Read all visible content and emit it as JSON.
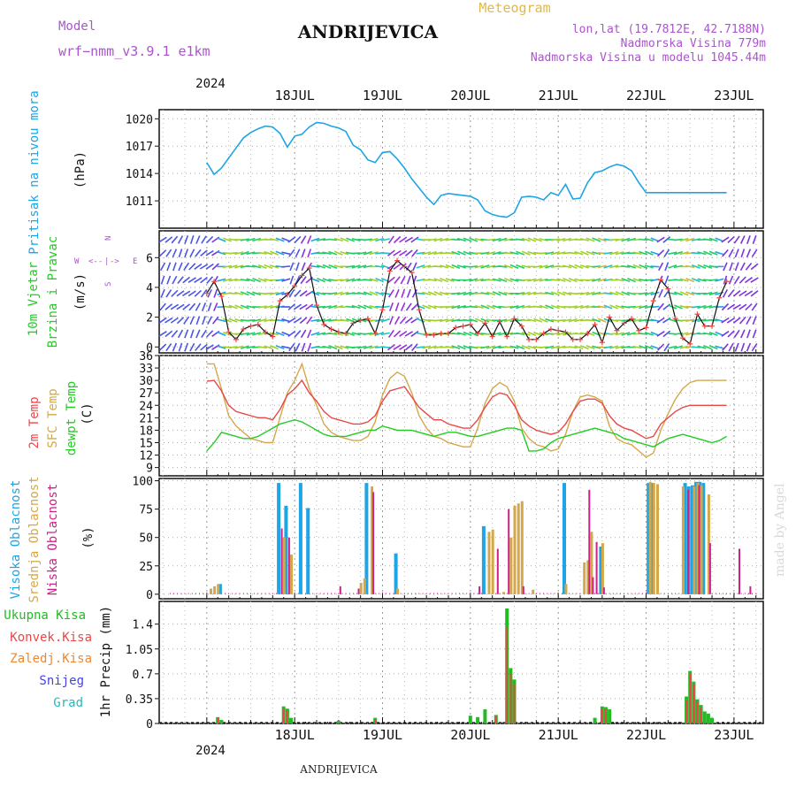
{
  "header": {
    "model_label": "Model",
    "model_name": "wrf−nmm_v3.9.1 e1km",
    "title": "ANDRIJEVICA",
    "meteogram": "Meteogram",
    "lonlat": "lon,lat (19.7812E, 42.7188N)",
    "elevation": "Nadmorska Visina 779m",
    "model_elevation": "Nadmorska Visina u modelu 1045.44m",
    "watermark": "made by Angel",
    "footer_title": "ANDRIJEVICA"
  },
  "colors": {
    "pressure": "#1ea5e6",
    "wind": "#22cc22",
    "temp2m": "#e84848",
    "sfc": "#d4a84a",
    "dewpt": "#22cc22",
    "high_cloud": "#1ea5e6",
    "mid_cloud": "#d4a84a",
    "low_cloud": "#cc2288",
    "total_precip": "#22bb22",
    "conv_precip": "#e84848",
    "frozen_precip": "#ee8833",
    "snow": "#4444dd",
    "hail": "#22bbbb",
    "model": "#aa55cc"
  },
  "time_axis": {
    "year": "2024",
    "days": [
      "18JUL",
      "19JUL",
      "20JUL",
      "21JUL",
      "22JUL",
      "23JUL"
    ]
  },
  "chart_data": [
    {
      "type": "line",
      "id": "pressure",
      "ylabel": "Pritisak na nivou mora",
      "unit": "(hPa)",
      "ylim": [
        1008,
        1021
      ],
      "yticks": [
        1011,
        1014,
        1017,
        1020
      ],
      "grid": true,
      "x_hours": [
        0,
        2,
        4,
        6,
        8,
        10,
        12,
        14,
        16,
        18,
        20,
        22,
        24,
        26,
        28,
        30,
        32,
        34,
        36,
        38,
        40,
        42,
        44,
        46,
        48,
        50,
        52,
        54,
        56,
        58,
        60,
        62,
        64,
        66,
        68,
        70,
        72,
        74,
        76,
        78,
        80,
        82,
        84,
        86,
        88,
        90,
        92,
        94,
        96,
        98,
        100,
        102,
        104,
        106,
        108,
        110,
        112,
        114,
        116,
        118,
        120,
        122,
        124,
        126,
        128,
        130,
        132,
        134,
        136,
        138,
        140,
        142
      ],
      "series": [
        {
          "values": [
            1015.2,
            1013.9,
            1014.6,
            1015.7,
            1016.8,
            1017.9,
            1018.5,
            1018.9,
            1019.2,
            1019.1,
            1018.4,
            1016.9,
            1018.1,
            1018.3,
            1019.1,
            1019.6,
            1019.5,
            1019.2,
            1019.0,
            1018.6,
            1017.1,
            1016.6,
            1015.5,
            1015.2,
            1016.3,
            1016.4,
            1015.6,
            1014.6,
            1013.4,
            1012.4,
            1011.4,
            1010.6,
            1011.6,
            1011.8,
            1011.7,
            1011.6,
            1011.5,
            1011.1,
            1009.9,
            1009.5,
            1009.3,
            1009.2,
            1009.7,
            1011.4,
            1011.5,
            1011.4,
            1011.1,
            1011.9,
            1011.6,
            1012.8,
            1011.2,
            1011.3,
            1013.0,
            1014.1,
            1014.3,
            1014.7,
            1015.0,
            1014.8,
            1014.3,
            1013.0,
            1011.9,
            1011.9,
            1011.9,
            1011.9,
            1011.9,
            1011.9,
            1011.9,
            1011.9,
            1011.9,
            1011.9,
            1011.9,
            1011.9
          ]
        }
      ]
    },
    {
      "type": "line",
      "id": "wind",
      "ylabel": "10m Vjetar",
      "ylabel2": "Brzina i Pravac",
      "unit": "(m/s)",
      "ylim": [
        -0.4,
        7.8
      ],
      "yticks": [
        0,
        2,
        4,
        6
      ],
      "grid": true,
      "x_hours": [
        0,
        2,
        4,
        6,
        8,
        10,
        12,
        14,
        16,
        18,
        20,
        22,
        24,
        26,
        28,
        30,
        32,
        34,
        36,
        38,
        40,
        42,
        44,
        46,
        48,
        50,
        52,
        54,
        56,
        58,
        60,
        62,
        64,
        66,
        68,
        70,
        72,
        74,
        76,
        78,
        80,
        82,
        84,
        86,
        88,
        90,
        92,
        94,
        96,
        98,
        100,
        102,
        104,
        106,
        108,
        110,
        112,
        114,
        116,
        118,
        120,
        122,
        124,
        126,
        128,
        130,
        132,
        134,
        136,
        138,
        140,
        142
      ],
      "series": [
        {
          "name": "speed",
          "values": [
            3.6,
            4.4,
            3.4,
            1.0,
            0.5,
            1.2,
            1.4,
            1.5,
            1.0,
            0.7,
            3.1,
            3.5,
            4.1,
            4.8,
            5.3,
            2.8,
            1.5,
            1.2,
            1.0,
            0.9,
            1.6,
            1.8,
            1.9,
            0.9,
            2.5,
            5.1,
            5.8,
            5.4,
            5.0,
            2.5,
            0.8,
            0.8,
            0.9,
            0.9,
            1.3,
            1.4,
            1.5,
            0.9,
            1.6,
            0.7,
            1.7,
            0.7,
            1.9,
            1.4,
            0.5,
            0.5,
            0.9,
            1.2,
            1.1,
            1.0,
            0.5,
            0.5,
            0.9,
            1.5,
            0.3,
            2.0,
            1.1,
            1.6,
            1.9,
            1.1,
            1.3,
            3.1,
            4.5,
            3.9,
            1.9,
            0.6,
            0.2,
            2.2,
            1.4,
            1.4,
            3.3,
            4.4
          ]
        }
      ]
    },
    {
      "type": "line",
      "id": "temperature",
      "ylabel": "2m Temp",
      "ylabel2": "SFC Temp",
      "ylabel3": "dewpt Temp",
      "unit": "(C)",
      "ylim": [
        7,
        36
      ],
      "yticks": [
        9,
        12,
        15,
        18,
        21,
        24,
        27,
        30,
        33,
        36
      ],
      "grid": true,
      "x_hours": [
        0,
        2,
        4,
        6,
        8,
        10,
        12,
        14,
        16,
        18,
        20,
        22,
        24,
        26,
        28,
        30,
        32,
        34,
        36,
        38,
        40,
        42,
        44,
        46,
        48,
        50,
        52,
        54,
        56,
        58,
        60,
        62,
        64,
        66,
        68,
        70,
        72,
        74,
        76,
        78,
        80,
        82,
        84,
        86,
        88,
        90,
        92,
        94,
        96,
        98,
        100,
        102,
        104,
        106,
        108,
        110,
        112,
        114,
        116,
        118,
        120,
        122,
        124,
        126,
        128,
        130,
        132,
        134,
        136,
        138,
        140,
        142
      ],
      "series": [
        {
          "name": "2m Temp",
          "values": [
            29.8,
            30.0,
            27.5,
            24.0,
            22.5,
            22.0,
            21.5,
            21.0,
            21.0,
            20.5,
            23.0,
            26.5,
            28.0,
            30.0,
            27.0,
            25.0,
            22.5,
            21.0,
            20.5,
            20.0,
            19.5,
            19.5,
            20.0,
            21.5,
            25.0,
            27.5,
            28.0,
            28.5,
            26.0,
            23.5,
            22.0,
            20.5,
            20.5,
            19.5,
            19.0,
            18.5,
            18.5,
            20.5,
            23.5,
            26.0,
            27.0,
            26.5,
            24.0,
            20.5,
            19.0,
            18.0,
            17.5,
            17.0,
            17.5,
            19.5,
            22.5,
            25.0,
            25.5,
            25.5,
            24.5,
            21.5,
            19.5,
            18.5,
            18.0,
            17.0,
            16.0,
            16.5,
            19.5,
            21.0,
            22.5,
            23.5,
            24.0,
            24.0,
            24.0,
            24.0,
            24.0,
            24.0
          ]
        },
        {
          "name": "SFC Temp",
          "values": [
            34.0,
            34.0,
            28.0,
            21.5,
            19.0,
            17.5,
            16.0,
            15.5,
            15.0,
            15.0,
            21.0,
            27.0,
            30.0,
            34.0,
            28.0,
            24.0,
            19.5,
            17.5,
            16.5,
            16.0,
            15.5,
            15.5,
            16.5,
            20.0,
            26.5,
            30.5,
            32.0,
            31.0,
            27.0,
            21.5,
            18.5,
            16.5,
            16.0,
            15.0,
            14.5,
            14.0,
            14.0,
            18.5,
            24.5,
            28.0,
            29.5,
            28.5,
            25.0,
            18.5,
            16.0,
            14.5,
            14.0,
            13.0,
            13.5,
            17.0,
            22.5,
            26.0,
            26.5,
            26.0,
            25.0,
            19.0,
            16.0,
            15.0,
            14.5,
            13.0,
            11.5,
            12.5,
            18.0,
            22.0,
            25.5,
            28.0,
            29.5,
            30.0,
            30.0,
            30.0,
            30.0,
            30.0
          ]
        },
        {
          "name": "dewpt Temp",
          "values": [
            13.0,
            15.0,
            17.5,
            17.0,
            16.5,
            16.0,
            16.0,
            16.5,
            17.5,
            18.5,
            19.5,
            20.0,
            20.5,
            20.0,
            19.0,
            18.0,
            17.0,
            16.5,
            16.5,
            16.5,
            17.0,
            17.5,
            18.0,
            18.0,
            19.0,
            18.5,
            18.0,
            18.0,
            18.0,
            17.5,
            17.0,
            16.5,
            17.0,
            17.5,
            17.5,
            17.0,
            16.5,
            16.5,
            17.0,
            17.5,
            18.0,
            18.5,
            18.5,
            18.0,
            13.0,
            13.0,
            13.5,
            15.0,
            16.0,
            16.5,
            17.0,
            17.5,
            18.0,
            18.5,
            18.0,
            17.5,
            17.0,
            16.0,
            15.5,
            15.0,
            14.5,
            14.0,
            15.0,
            16.0,
            16.5,
            17.0,
            16.5,
            16.0,
            15.5,
            15.0,
            15.5,
            16.5
          ]
        }
      ]
    },
    {
      "type": "bar",
      "id": "cloud",
      "ylabel": "Visoka Oblacnost",
      "ylabel2": "Srednja Oblacnost",
      "ylabel3": "Niska Oblacnost",
      "unit": "(%)",
      "ylim": [
        -4,
        102
      ],
      "yticks": [
        0,
        25,
        50,
        75,
        100
      ],
      "grid": true,
      "series": [
        {
          "name": "Visoka Oblacnost",
          "points": [
            [
              4,
              9
            ],
            [
              20,
              98
            ],
            [
              22,
              78
            ],
            [
              26,
              98
            ],
            [
              28,
              76
            ],
            [
              44,
              98
            ],
            [
              52,
              36
            ],
            [
              76,
              60
            ],
            [
              98,
              98
            ],
            [
              108,
              42
            ],
            [
              121,
              98
            ],
            [
              122,
              98
            ],
            [
              131,
              98
            ],
            [
              132,
              95
            ],
            [
              133,
              96
            ],
            [
              134,
              99
            ],
            [
              135,
              99
            ],
            [
              136,
              98
            ]
          ]
        },
        {
          "name": "Srednja Oblacnost",
          "points": [
            [
              1,
              5
            ],
            [
              2,
              7
            ],
            [
              3,
              9
            ],
            [
              21,
              50
            ],
            [
              23,
              35
            ],
            [
              42,
              10
            ],
            [
              43,
              14
            ],
            [
              45,
              95
            ],
            [
              52,
              5
            ],
            [
              77,
              55
            ],
            [
              78,
              57
            ],
            [
              81,
              2
            ],
            [
              83,
              50
            ],
            [
              84,
              78
            ],
            [
              85,
              80
            ],
            [
              86,
              82
            ],
            [
              89,
              4
            ],
            [
              98,
              9
            ],
            [
              103,
              28
            ],
            [
              104,
              30
            ],
            [
              105,
              55
            ],
            [
              108,
              45
            ],
            [
              121,
              99
            ],
            [
              122,
              98
            ],
            [
              123,
              97
            ],
            [
              130,
              95
            ],
            [
              133,
              95
            ],
            [
              134,
              98
            ],
            [
              135,
              96
            ],
            [
              137,
              88
            ]
          ]
        },
        {
          "name": "Niska Oblacnost",
          "points": [
            [
              20,
              58
            ],
            [
              22,
              50
            ],
            [
              36,
              7
            ],
            [
              41,
              5
            ],
            [
              45,
              90
            ],
            [
              74,
              7
            ],
            [
              79,
              40
            ],
            [
              82,
              75
            ],
            [
              86,
              7
            ],
            [
              104,
              92
            ],
            [
              105,
              15
            ],
            [
              106,
              46
            ],
            [
              108,
              6
            ],
            [
              131,
              92
            ],
            [
              134,
              96
            ],
            [
              137,
              45
            ],
            [
              145,
              40
            ],
            [
              148,
              7
            ]
          ]
        }
      ]
    },
    {
      "type": "bar",
      "id": "precip",
      "ylabel": "1hr Precip",
      "unit": "(mm)",
      "ylim": [
        0,
        1.72
      ],
      "yticks": [
        0,
        0.35,
        0.7,
        1.05,
        1.4
      ],
      "ytick_labels": [
        "0",
        "0.35",
        "0.7",
        "1.05",
        "1.4"
      ],
      "grid": true,
      "legend": [
        "Ukupna Kisa",
        "Konvek.Kisa",
        "Zaledj.Kisa",
        "Snijeg",
        "Grad"
      ],
      "series": [
        {
          "name": "Ukupna Kisa",
          "points": [
            [
              3,
              0.09
            ],
            [
              4,
              0.05
            ],
            [
              21,
              0.24
            ],
            [
              22,
              0.21
            ],
            [
              23,
              0.08
            ],
            [
              36,
              0.04
            ],
            [
              46,
              0.08
            ],
            [
              72,
              0.11
            ],
            [
              74,
              0.09
            ],
            [
              76,
              0.2
            ],
            [
              79,
              0.12
            ],
            [
              82,
              1.62
            ],
            [
              83,
              0.78
            ],
            [
              84,
              0.62
            ],
            [
              106,
              0.08
            ],
            [
              108,
              0.24
            ],
            [
              109,
              0.23
            ],
            [
              110,
              0.2
            ],
            [
              131,
              0.38
            ],
            [
              132,
              0.74
            ],
            [
              133,
              0.59
            ],
            [
              134,
              0.34
            ],
            [
              135,
              0.26
            ],
            [
              136,
              0.17
            ],
            [
              137,
              0.14
            ],
            [
              138,
              0.08
            ]
          ]
        },
        {
          "name": "Konvek.Kisa",
          "points": [
            [
              3,
              0.08
            ],
            [
              21,
              0.2
            ],
            [
              22,
              0.18
            ],
            [
              46,
              0.06
            ],
            [
              79,
              0.1
            ],
            [
              82,
              1.35
            ],
            [
              83,
              0.7
            ],
            [
              84,
              0.55
            ],
            [
              108,
              0.2
            ],
            [
              109,
              0.2
            ],
            [
              131,
              0.33
            ],
            [
              132,
              0.7
            ],
            [
              133,
              0.55
            ],
            [
              134,
              0.3
            ],
            [
              135,
              0.22
            ]
          ]
        }
      ]
    }
  ]
}
